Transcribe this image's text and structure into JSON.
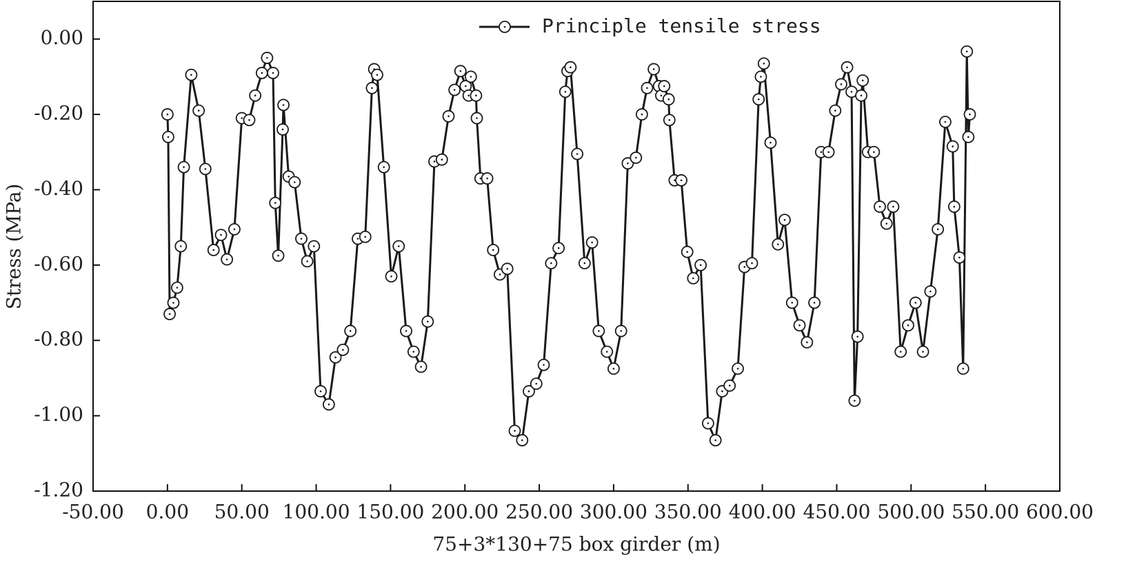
{
  "chart_data": {
    "type": "line",
    "xlabel": "75+3*130+75 box girder (m)",
    "ylabel": "Stress (MPa)",
    "x": [
      0,
      0.5,
      1.5,
      4,
      6.5,
      9,
      11,
      16,
      21,
      25.5,
      31,
      36,
      40,
      45,
      50,
      55,
      59,
      63.5,
      67,
      71,
      72.5,
      74.5,
      77.5,
      78,
      81.5,
      85.5,
      90,
      94,
      98.5,
      103,
      108.5,
      113,
      118,
      123,
      128,
      133,
      137.5,
      139,
      141,
      145.5,
      150.5,
      155.5,
      160.5,
      165.5,
      170.5,
      175,
      179.5,
      184.5,
      189,
      193,
      197,
      200.5,
      202.5,
      204,
      207.5,
      208,
      210.5,
      215,
      219,
      223.5,
      228.5,
      233.5,
      238.5,
      243,
      248,
      253,
      258,
      263,
      267.5,
      269,
      271,
      275.5,
      280.5,
      285.5,
      290,
      295.5,
      300,
      305,
      309.5,
      315,
      319,
      322.5,
      327,
      330.5,
      332,
      334,
      337,
      337.5,
      341,
      345.5,
      349.5,
      353.5,
      358.5,
      363.5,
      368.5,
      373,
      378,
      383.5,
      388,
      393,
      397.5,
      399,
      401,
      405.5,
      410.5,
      415,
      420,
      425,
      430,
      435,
      439.5,
      444.5,
      449,
      453,
      457,
      460,
      462,
      464,
      466.5,
      467.5,
      471,
      475,
      479,
      483.5,
      488,
      493,
      498,
      503,
      508,
      513,
      518,
      523,
      528,
      529,
      532.5,
      535,
      537.5,
      538.5,
      539.5
    ],
    "series": [
      {
        "name": "Principle tensile stress",
        "color": "#1a1a1a",
        "values": [
          -0.2,
          -0.26,
          -0.73,
          -0.7,
          -0.66,
          -0.55,
          -0.34,
          -0.095,
          -0.19,
          -0.345,
          -0.56,
          -0.52,
          -0.585,
          -0.505,
          -0.21,
          -0.215,
          -0.15,
          -0.09,
          -0.05,
          -0.09,
          -0.435,
          -0.575,
          -0.24,
          -0.175,
          -0.365,
          -0.38,
          -0.53,
          -0.59,
          -0.55,
          -0.935,
          -0.97,
          -0.845,
          -0.825,
          -0.775,
          -0.53,
          -0.525,
          -0.13,
          -0.08,
          -0.095,
          -0.34,
          -0.63,
          -0.55,
          -0.775,
          -0.83,
          -0.87,
          -0.75,
          -0.325,
          -0.32,
          -0.205,
          -0.135,
          -0.085,
          -0.125,
          -0.15,
          -0.1,
          -0.15,
          -0.21,
          -0.37,
          -0.37,
          -0.56,
          -0.625,
          -0.61,
          -1.04,
          -1.065,
          -0.935,
          -0.915,
          -0.865,
          -0.595,
          -0.555,
          -0.14,
          -0.085,
          -0.075,
          -0.305,
          -0.595,
          -0.54,
          -0.775,
          -0.83,
          -0.875,
          -0.775,
          -0.33,
          -0.315,
          -0.2,
          -0.13,
          -0.08,
          -0.125,
          -0.15,
          -0.125,
          -0.16,
          -0.215,
          -0.375,
          -0.375,
          -0.565,
          -0.635,
          -0.6,
          -1.02,
          -1.065,
          -0.935,
          -0.92,
          -0.875,
          -0.605,
          -0.595,
          -0.16,
          -0.1,
          -0.065,
          -0.275,
          -0.545,
          -0.48,
          -0.7,
          -0.76,
          -0.805,
          -0.7,
          -0.3,
          -0.3,
          -0.19,
          -0.12,
          -0.075,
          -0.14,
          -0.96,
          -0.79,
          -0.15,
          -0.11,
          -0.3,
          -0.3,
          -0.445,
          -0.49,
          -0.445,
          -0.83,
          -0.76,
          -0.7,
          -0.83,
          -0.67,
          -0.505,
          -0.22,
          -0.285,
          -0.445,
          -0.58,
          -0.875,
          -0.033,
          -0.26,
          -0.2
        ]
      }
    ],
    "xlim": [
      -50,
      600
    ],
    "xticks": [
      {
        "value": -50,
        "label": "-50.00"
      },
      {
        "value": 0,
        "label": "0.00"
      },
      {
        "value": 50,
        "label": "50.00"
      },
      {
        "value": 100,
        "label": "100.00"
      },
      {
        "value": 150,
        "label": "150.00"
      },
      {
        "value": 200,
        "label": "200.00"
      },
      {
        "value": 250,
        "label": "250.00"
      },
      {
        "value": 300,
        "label": "300.00"
      },
      {
        "value": 350,
        "label": "350.00"
      },
      {
        "value": 400,
        "label": "400.00"
      },
      {
        "value": 450,
        "label": "450.00"
      },
      {
        "value": 500,
        "label": "500.00"
      },
      {
        "value": 550,
        "label": "550.00"
      },
      {
        "value": 600,
        "label": "600.00"
      }
    ],
    "ylim": [
      -1.2,
      0.1
    ],
    "yticks": [
      {
        "value": 0,
        "label": "0.00"
      },
      {
        "value": -0.2,
        "label": "-0.20"
      },
      {
        "value": -0.4,
        "label": "-0.40"
      },
      {
        "value": -0.6,
        "label": "-0.60"
      },
      {
        "value": -0.8,
        "label": "-0.80"
      },
      {
        "value": -1.0,
        "label": "-1.00"
      },
      {
        "value": -1.2,
        "label": "-1.20"
      }
    ],
    "legend": "top"
  }
}
